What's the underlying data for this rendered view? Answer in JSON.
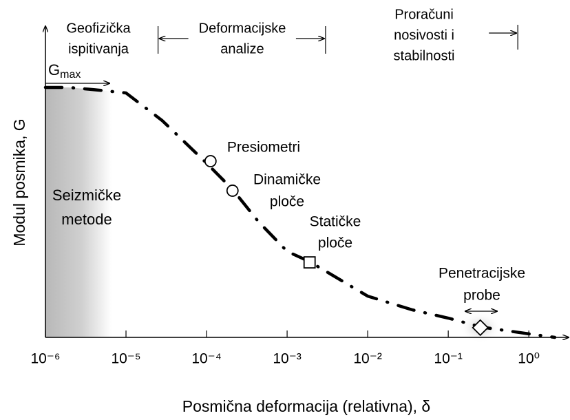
{
  "chart_data": {
    "type": "line",
    "x_label": "Posmična deformacija (relativna), δ",
    "y_label": "Modul posmika, G",
    "log_x": true,
    "xlim": [
      1e-06,
      3
    ],
    "ylim": [
      0,
      1.2
    ],
    "xticks": [
      {
        "value": 1e-06,
        "label": "10⁻⁶"
      },
      {
        "value": 1e-05,
        "label": "10⁻⁵"
      },
      {
        "value": 0.0001,
        "label": "10⁻⁴"
      },
      {
        "value": 0.001,
        "label": "10⁻³"
      },
      {
        "value": 0.01,
        "label": "10⁻²"
      },
      {
        "value": 0.1,
        "label": "10⁻¹"
      },
      {
        "value": 1,
        "label": "10⁰"
      }
    ],
    "series": [
      {
        "color": "#000000",
        "x": [
          1e-06,
          1.95e-06,
          4.3e-06,
          1e-05,
          2.8e-05,
          0.0001,
          0.00021,
          0.00044,
          0.001,
          0.0019,
          0.01,
          0.036,
          0.1,
          0.26,
          1,
          2.1
        ],
        "values": [
          1.0,
          1.0,
          0.99,
          0.978,
          0.868,
          0.697,
          0.592,
          0.463,
          0.344,
          0.303,
          0.165,
          0.11,
          0.077,
          0.041,
          0.014,
          0.0
        ]
      }
    ],
    "markers": [
      {
        "shape": "circle",
        "x": 0.000112,
        "y": 0.705
      },
      {
        "shape": "circle",
        "x": 0.00021,
        "y": 0.587
      },
      {
        "shape": "square",
        "x": 0.0019,
        "y": 0.3
      },
      {
        "shape": "diamond",
        "x": 0.25,
        "y": 0.039
      }
    ],
    "gmax_label": {
      "base": "G",
      "sub": "max"
    },
    "range_bounds": [
      2.5e-05,
      0.003,
      0.73
    ],
    "ranges": [
      {
        "lines": [
          "Geofizička",
          "ispitivanja"
        ]
      },
      {
        "lines": [
          "Deformacijske",
          "analize"
        ]
      },
      {
        "lines": [
          "Proračuni",
          "nosivosti i",
          "stabilnosti"
        ]
      }
    ],
    "annotations": [
      {
        "lines": [
          "Seizmičke",
          "metode"
        ]
      },
      {
        "lines": [
          "Presiometri"
        ]
      },
      {
        "lines": [
          "Dinamičke",
          "ploče"
        ]
      },
      {
        "lines": [
          "Statičke",
          "ploče"
        ]
      },
      {
        "lines": [
          "Penetracijske",
          "probe"
        ]
      }
    ]
  }
}
